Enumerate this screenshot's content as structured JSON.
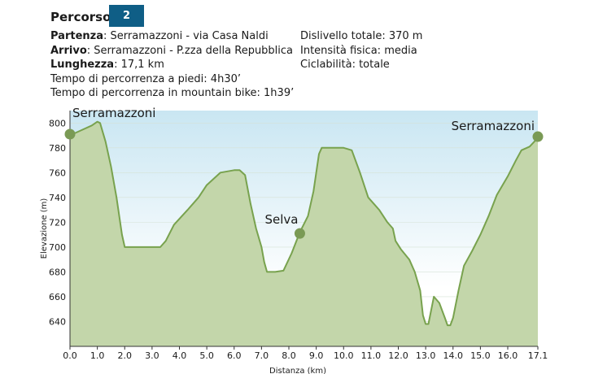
{
  "header": {
    "title": "Percorso",
    "badge": "2",
    "start_label": "Partenza",
    "start_value": ": Serramazzoni - via Casa Naldi",
    "end_label": "Arrivo",
    "end_value": ": Serramazzoni - P.zza della Repubblica",
    "length_label": "Lunghezza",
    "length_value": ": 17,1 km",
    "walk_time": "Tempo di percorrenza a piedi: 4h30’",
    "bike_time": "Tempo di percorrenza in mountain bike: 1h39’",
    "elevation_gain": "Dislivello totale: 370 m",
    "intensity": "Intensità fisica: media",
    "cyclability": "Ciclabilità: totale"
  },
  "colors": {
    "badge": "#0f5e86",
    "sky_top": "#c9e6f2",
    "sky_bottom": "#ffffff",
    "fill": "#c3d6aa",
    "line": "#78a24e",
    "marker": "#7a9a55"
  },
  "chart_data": {
    "type": "area",
    "xlabel": "Distanza (km)",
    "ylabel": "Elevazione (m)",
    "xlim": [
      0,
      17.1
    ],
    "ylim": [
      620,
      810
    ],
    "xticks": [
      "0.0",
      "1.0",
      "2.0",
      "3.0",
      "4.0",
      "5.0",
      "6.0",
      "7.0",
      "8.0",
      "9.0",
      "10.0",
      "11.0",
      "12.0",
      "13.0",
      "14.0",
      "15.0",
      "16.0",
      "17.1"
    ],
    "yticks": [
      "640",
      "660",
      "680",
      "700",
      "720",
      "740",
      "760",
      "780",
      "800"
    ],
    "x": [
      0,
      0.4,
      0.8,
      1.0,
      1.1,
      1.3,
      1.5,
      1.7,
      1.9,
      2.0,
      2.5,
      3.0,
      3.3,
      3.5,
      3.8,
      4.3,
      4.7,
      5.0,
      5.5,
      6.0,
      6.2,
      6.4,
      6.6,
      6.8,
      7.0,
      7.1,
      7.2,
      7.5,
      7.8,
      8.1,
      8.4,
      8.7,
      8.9,
      9.1,
      9.2,
      9.5,
      10.0,
      10.3,
      10.6,
      10.9,
      11.3,
      11.6,
      11.8,
      11.9,
      12.1,
      12.4,
      12.6,
      12.8,
      12.9,
      13.0,
      13.1,
      13.3,
      13.5,
      13.7,
      13.8,
      13.9,
      14.0,
      14.2,
      14.4,
      14.7,
      15.0,
      15.3,
      15.6,
      16.0,
      16.3,
      16.5,
      16.8,
      17.1
    ],
    "y": [
      790,
      794,
      798,
      801,
      800,
      785,
      765,
      740,
      710,
      700,
      700,
      700,
      700,
      705,
      718,
      730,
      740,
      750,
      760,
      762,
      762,
      758,
      735,
      715,
      700,
      688,
      680,
      680,
      681,
      695,
      712,
      725,
      745,
      775,
      780,
      780,
      780,
      778,
      760,
      740,
      730,
      720,
      715,
      705,
      698,
      690,
      680,
      665,
      645,
      638,
      638,
      660,
      655,
      643,
      637,
      637,
      643,
      665,
      685,
      697,
      710,
      725,
      742,
      757,
      770,
      778,
      781,
      788
    ],
    "annotations": [
      {
        "text": "Serramazzoni",
        "x": 0.0,
        "y": 791
      },
      {
        "text": "Selva",
        "x": 8.4,
        "y": 711
      },
      {
        "text": "Serramazzoni",
        "x": 17.1,
        "y": 789
      }
    ]
  }
}
